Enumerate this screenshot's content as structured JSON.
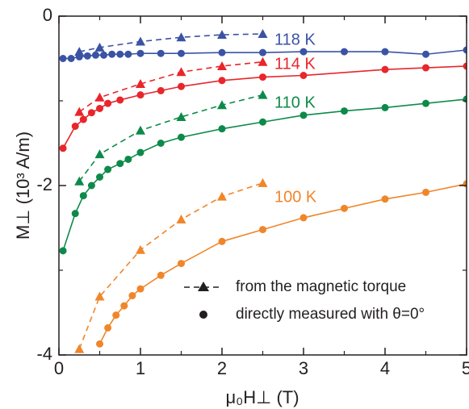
{
  "chart_data": {
    "type": "line",
    "xlabel": "μ₀H⊥ (T)",
    "ylabel": "M⊥ (10³ A/m)",
    "xlim": [
      0,
      5
    ],
    "xticks": [
      0,
      1,
      2,
      3,
      4,
      5
    ],
    "xminorticks": [
      0.5,
      1.5,
      2.5,
      3.5,
      4.5
    ],
    "ylim": [
      -4,
      0
    ],
    "yticks": [
      0,
      -2,
      -4
    ],
    "yminorticks": [
      -1,
      -3
    ],
    "legend": [
      {
        "label": "from the magnetic torque"
      },
      {
        "label": "directly measured with θ=0°"
      }
    ],
    "series": [
      {
        "name": "118 K",
        "color": "#3a53a4",
        "torque": {
          "x": [
            0.25,
            0.5,
            1,
            1.5,
            2,
            2.5
          ],
          "values": [
            -0.42,
            -0.37,
            -0.3,
            -0.25,
            -0.22,
            -0.21
          ]
        },
        "measured": {
          "x": [
            0.05,
            0.15,
            0.25,
            0.35,
            0.45,
            0.55,
            0.65,
            0.75,
            0.85,
            1,
            1.25,
            1.5,
            2,
            2.5,
            3,
            3.5,
            4,
            4.5,
            5
          ],
          "values": [
            -0.5,
            -0.5,
            -0.48,
            -0.47,
            -0.46,
            -0.46,
            -0.45,
            -0.45,
            -0.45,
            -0.44,
            -0.44,
            -0.44,
            -0.43,
            -0.43,
            -0.42,
            -0.42,
            -0.42,
            -0.45,
            -0.4
          ]
        }
      },
      {
        "name": "114 K",
        "color": "#e8262b",
        "torque": {
          "x": [
            0.25,
            0.5,
            1,
            1.5,
            2,
            2.5
          ],
          "values": [
            -1.13,
            -0.96,
            -0.8,
            -0.66,
            -0.59,
            -0.54
          ]
        },
        "measured": {
          "x": [
            0.05,
            0.2,
            0.3,
            0.4,
            0.5,
            0.6,
            0.75,
            1,
            1.25,
            1.5,
            2,
            2.5,
            3,
            4,
            4.5,
            5
          ],
          "values": [
            -1.56,
            -1.3,
            -1.22,
            -1.14,
            -1.09,
            -1.03,
            -0.99,
            -0.93,
            -0.88,
            -0.83,
            -0.76,
            -0.72,
            -0.7,
            -0.63,
            -0.61,
            -0.59
          ]
        }
      },
      {
        "name": "110 K",
        "color": "#0d8a4a",
        "torque": {
          "x": [
            0.25,
            0.5,
            1,
            1.5,
            2,
            2.5
          ],
          "values": [
            -1.95,
            -1.63,
            -1.35,
            -1.19,
            -1.05,
            -0.93
          ]
        },
        "measured": {
          "x": [
            0.05,
            0.2,
            0.3,
            0.4,
            0.5,
            0.6,
            0.75,
            0.85,
            1,
            1.25,
            1.5,
            2,
            2.5,
            3,
            3.5,
            4,
            4.5,
            5
          ],
          "values": [
            -2.77,
            -2.33,
            -2.12,
            -2.0,
            -1.9,
            -1.81,
            -1.74,
            -1.69,
            -1.61,
            -1.5,
            -1.43,
            -1.33,
            -1.25,
            -1.17,
            -1.12,
            -1.08,
            -1.03,
            -0.98
          ]
        }
      },
      {
        "name": "100 K",
        "color": "#f0862a",
        "torque": {
          "x": [
            0.25,
            0.5,
            1,
            1.5,
            2,
            2.5
          ],
          "values": [
            -3.93,
            -3.31,
            -2.76,
            -2.4,
            -2.13,
            -1.97
          ]
        },
        "measured": {
          "x": [
            0.5,
            0.6,
            0.7,
            0.8,
            0.9,
            1,
            1.25,
            1.5,
            2,
            2.5,
            3,
            3.5,
            4,
            4.5,
            5
          ],
          "values": [
            -3.87,
            -3.68,
            -3.53,
            -3.42,
            -3.3,
            -3.22,
            -3.06,
            -2.92,
            -2.66,
            -2.52,
            -2.38,
            -2.27,
            -2.16,
            -2.08,
            -1.98
          ]
        }
      }
    ]
  }
}
